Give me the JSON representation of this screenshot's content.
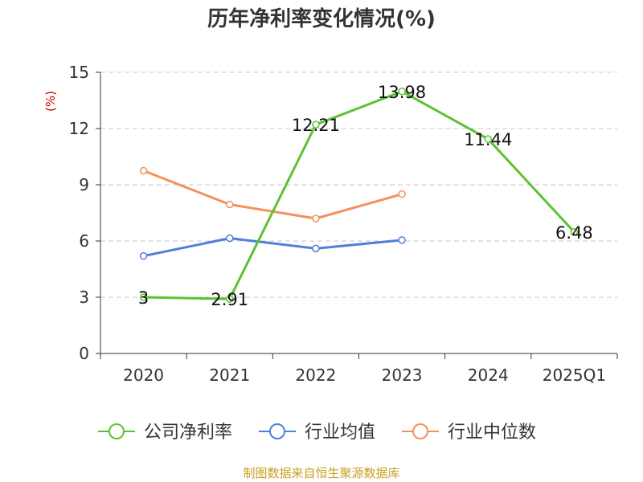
{
  "chart_data": {
    "type": "line",
    "title": "历年净利率变化情况(%)",
    "ylabel": "(%)",
    "xlabel": "",
    "categories": [
      "2020",
      "2021",
      "2022",
      "2023",
      "2024",
      "2025Q1"
    ],
    "ylim": [
      0,
      15
    ],
    "yticks": [
      0,
      3,
      6,
      9,
      12,
      15
    ],
    "grid": true,
    "legend_position": "bottom-center",
    "series": [
      {
        "name": "公司净利率",
        "color": "#5cc22f",
        "values": [
          3,
          2.91,
          12.21,
          13.98,
          11.44,
          6.48
        ],
        "labels": [
          "3",
          "2.91",
          "12.21",
          "13.98",
          "11.44",
          "6.48"
        ],
        "show_labels": true
      },
      {
        "name": "行业均值",
        "color": "#4f7fd9",
        "values": [
          5.2,
          6.15,
          5.6,
          6.05,
          null,
          null
        ],
        "show_labels": false
      },
      {
        "name": "行业中位数",
        "color": "#f5905a",
        "values": [
          9.75,
          7.95,
          7.2,
          8.5,
          null,
          null
        ],
        "show_labels": false
      }
    ]
  },
  "footer": {
    "source": "制图数据来自恒生聚源数据库"
  }
}
